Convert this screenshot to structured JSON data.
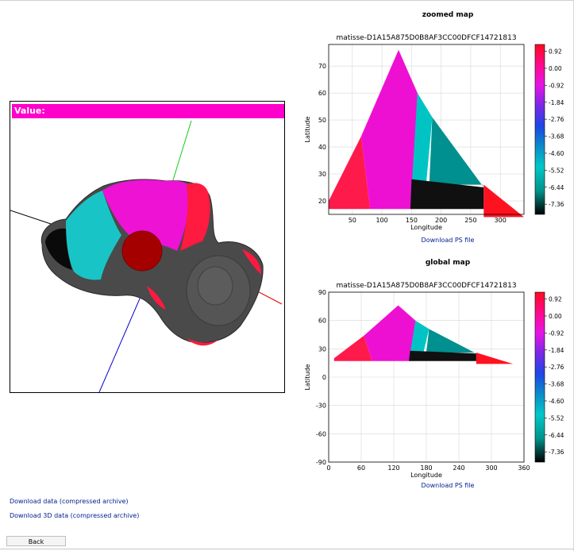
{
  "viewer": {
    "value_label": "Value:"
  },
  "colors": {
    "accent": "#ff00cc",
    "link": "#001e8c"
  },
  "zoomed": {
    "section_title": "zoomed map",
    "download_label": "Download PS file"
  },
  "global": {
    "section_title": "global map",
    "download_label": "Download PS file"
  },
  "links": {
    "download_data": "Download data (compressed archive)",
    "download_3d": "Download 3D data (compressed archive)"
  },
  "back_label": "Back",
  "chart_data": [
    {
      "type": "heatmap",
      "title": "matisse-D1A15A875D0B8AF3CC00DFCF14721813",
      "xlabel": "Longitude",
      "ylabel": "Latitude",
      "xlim": [
        10,
        340
      ],
      "ylim": [
        15,
        78
      ],
      "xticks": [
        50,
        100,
        150,
        200,
        250,
        300
      ],
      "yticks": [
        20,
        30,
        40,
        50,
        60,
        70
      ],
      "grid": true,
      "colorbar": {
        "ticks": [
          "0.92",
          "0.00",
          "-0.92",
          "-1.84",
          "-2.76",
          "-3.68",
          "-4.60",
          "-5.52",
          "-6.44",
          "-7.36"
        ]
      },
      "regions": [
        {
          "value": 0.5,
          "color": "#ff1a4c",
          "polygon": [
            [
              10,
              20
            ],
            [
              65,
              44
            ],
            [
              80,
              17
            ],
            [
              10,
              17
            ]
          ]
        },
        {
          "value": 0.0,
          "color": "#ee10d2",
          "polygon": [
            [
              65,
              44
            ],
            [
              128,
              76
            ],
            [
              160,
              60
            ],
            [
              150,
              17
            ],
            [
              80,
              17
            ]
          ]
        },
        {
          "value": -5.4,
          "color": "#00c4c4",
          "polygon": [
            [
              160,
              60
            ],
            [
              185,
              51
            ],
            [
              175,
              27
            ],
            [
              150,
              28
            ],
            [
              148,
              17
            ]
          ]
        },
        {
          "value": -6.3,
          "color": "#00908f",
          "polygon": [
            [
              185,
              51
            ],
            [
              272,
              25
            ],
            [
              270,
              26
            ],
            [
              180,
              26
            ]
          ]
        },
        {
          "value": -7.3,
          "color": "#101010",
          "polygon": [
            [
              150,
              28
            ],
            [
              272,
              25
            ],
            [
              272,
              17
            ],
            [
              148,
              17
            ]
          ]
        },
        {
          "value": 0.6,
          "color": "#ff1220",
          "polygon": [
            [
              272,
              26
            ],
            [
              340,
              14
            ],
            [
              272,
              14
            ]
          ]
        }
      ]
    },
    {
      "type": "heatmap",
      "title": "matisse-D1A15A875D0B8AF3CC00DFCF14721813",
      "xlabel": "Longitude",
      "ylabel": "Latitude",
      "xlim": [
        0,
        360
      ],
      "ylim": [
        -90,
        90
      ],
      "xticks": [
        0,
        60,
        120,
        180,
        240,
        300,
        360
      ],
      "yticks": [
        90,
        60,
        30,
        0,
        -30,
        -60,
        -90
      ],
      "grid": true,
      "colorbar": {
        "ticks": [
          "0.92",
          "0.00",
          "-0.92",
          "-1.84",
          "-2.76",
          "-3.68",
          "-4.60",
          "-5.52",
          "-6.44",
          "-7.36"
        ]
      },
      "regions": [
        {
          "value": 0.5,
          "color": "#ff1a4c",
          "polygon": [
            [
              10,
              20
            ],
            [
              65,
              44
            ],
            [
              80,
              17
            ],
            [
              10,
              17
            ]
          ]
        },
        {
          "value": 0.0,
          "color": "#ee10d2",
          "polygon": [
            [
              65,
              44
            ],
            [
              128,
              76
            ],
            [
              160,
              60
            ],
            [
              150,
              17
            ],
            [
              80,
              17
            ]
          ]
        },
        {
          "value": -5.4,
          "color": "#00c4c4",
          "polygon": [
            [
              160,
              60
            ],
            [
              185,
              51
            ],
            [
              175,
              27
            ],
            [
              150,
              28
            ],
            [
              148,
              17
            ]
          ]
        },
        {
          "value": -6.3,
          "color": "#00908f",
          "polygon": [
            [
              185,
              51
            ],
            [
              272,
              25
            ],
            [
              270,
              26
            ],
            [
              180,
              26
            ]
          ]
        },
        {
          "value": -7.3,
          "color": "#101010",
          "polygon": [
            [
              150,
              28
            ],
            [
              272,
              25
            ],
            [
              272,
              17
            ],
            [
              148,
              17
            ]
          ]
        },
        {
          "value": 0.6,
          "color": "#ff1220",
          "polygon": [
            [
              272,
              26
            ],
            [
              340,
              14
            ],
            [
              272,
              14
            ]
          ]
        }
      ]
    }
  ]
}
